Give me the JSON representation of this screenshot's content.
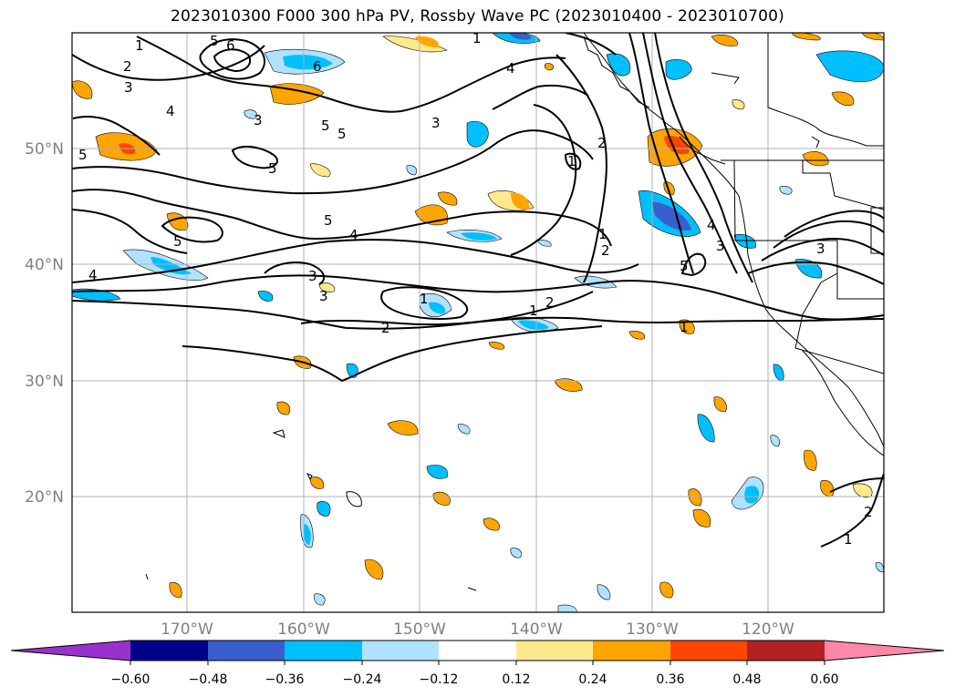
{
  "title": "2023010300 F000 300 hPa PV, Rossby Wave PC (2023010400 - 2023010700)",
  "latitude_labels": [
    "50°N",
    "40°N",
    "30°N",
    "20°N"
  ],
  "longitude_labels": [
    "170°W",
    "160°W",
    "150°W",
    "140°W",
    "130°W",
    "120°W"
  ],
  "colorbar": {
    "tick_labels": [
      "−0.60",
      "−0.48",
      "−0.36",
      "−0.24",
      "−0.12",
      "0.12",
      "0.24",
      "0.36",
      "0.48",
      "0.60"
    ],
    "colors": [
      "#9932CC",
      "#00008B",
      "#3A5FCD",
      "#00BFFF",
      "#B0E2FF",
      "#FFFFFF",
      "#FFE98A",
      "#FFA500",
      "#FF4500",
      "#B22222",
      "#FF88AA"
    ],
    "extend": "both"
  },
  "contour_labels": [
    "1",
    "2",
    "2",
    "3",
    "3",
    "3",
    "3",
    "3",
    "3",
    "4",
    "4",
    "4",
    "4",
    "5",
    "5",
    "5",
    "5",
    "5",
    "5",
    "5",
    "6",
    "6",
    "1",
    "1",
    "2",
    "1",
    "2",
    "1",
    "1",
    "1",
    "5",
    "3",
    "4",
    "2",
    "1",
    "2"
  ],
  "colors": {
    "coast": "#000000",
    "contour": "#000000",
    "grid": "#b0b0b0"
  }
}
